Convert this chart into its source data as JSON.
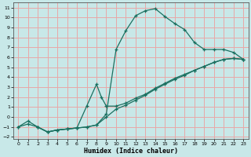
{
  "xlabel": "Humidex (Indice chaleur)",
  "xlim": [
    -0.5,
    23.5
  ],
  "ylim": [
    -2.2,
    11.5
  ],
  "xticks": [
    0,
    1,
    2,
    3,
    4,
    5,
    6,
    7,
    8,
    9,
    10,
    11,
    12,
    13,
    14,
    15,
    16,
    17,
    18,
    19,
    20,
    21,
    22,
    23
  ],
  "yticks": [
    -2,
    -1,
    0,
    1,
    2,
    3,
    4,
    5,
    6,
    7,
    8,
    9,
    10,
    11
  ],
  "bg_color": "#c8e8e8",
  "grid_color": "#e8a8a8",
  "line_color": "#1a7060",
  "curve1_x": [
    0,
    1,
    2,
    3,
    4,
    5,
    6,
    7,
    8,
    9,
    10,
    11,
    12,
    13,
    14,
    15,
    16,
    17,
    18,
    19,
    20,
    21,
    22,
    23
  ],
  "curve1_y": [
    -1.0,
    -0.4,
    -1.0,
    -1.5,
    -1.3,
    -1.2,
    -1.1,
    -1.0,
    -0.8,
    0.3,
    6.8,
    8.7,
    10.2,
    10.7,
    10.9,
    10.1,
    9.4,
    8.8,
    7.5,
    6.8,
    6.8,
    6.8,
    6.5,
    5.8
  ],
  "curve2_x": [
    0,
    1,
    2,
    3,
    4,
    5,
    6,
    7,
    8,
    9,
    10,
    11,
    12,
    13,
    14,
    15,
    16,
    17,
    18,
    19,
    20,
    21,
    22,
    23
  ],
  "curve2_y": [
    -1.0,
    -0.7,
    -1.0,
    -1.5,
    -1.3,
    -1.2,
    -1.1,
    -1.0,
    -0.8,
    0.0,
    0.8,
    1.2,
    1.7,
    2.2,
    2.8,
    3.3,
    3.8,
    4.2,
    4.7,
    5.1,
    5.5,
    5.8,
    5.9,
    5.8
  ],
  "curve3_x": [
    2,
    3,
    4,
    5,
    6,
    7,
    8,
    8.5,
    9,
    10,
    11,
    12,
    13,
    14,
    15,
    16,
    17,
    18,
    19,
    20,
    21,
    22,
    23
  ],
  "curve3_y": [
    -1.0,
    -1.5,
    -1.3,
    -1.2,
    -1.1,
    1.1,
    3.3,
    2.0,
    1.1,
    1.1,
    1.4,
    1.9,
    2.3,
    2.9,
    3.4,
    3.9,
    4.3,
    4.7,
    5.1,
    5.5,
    5.8,
    5.9,
    5.8
  ]
}
